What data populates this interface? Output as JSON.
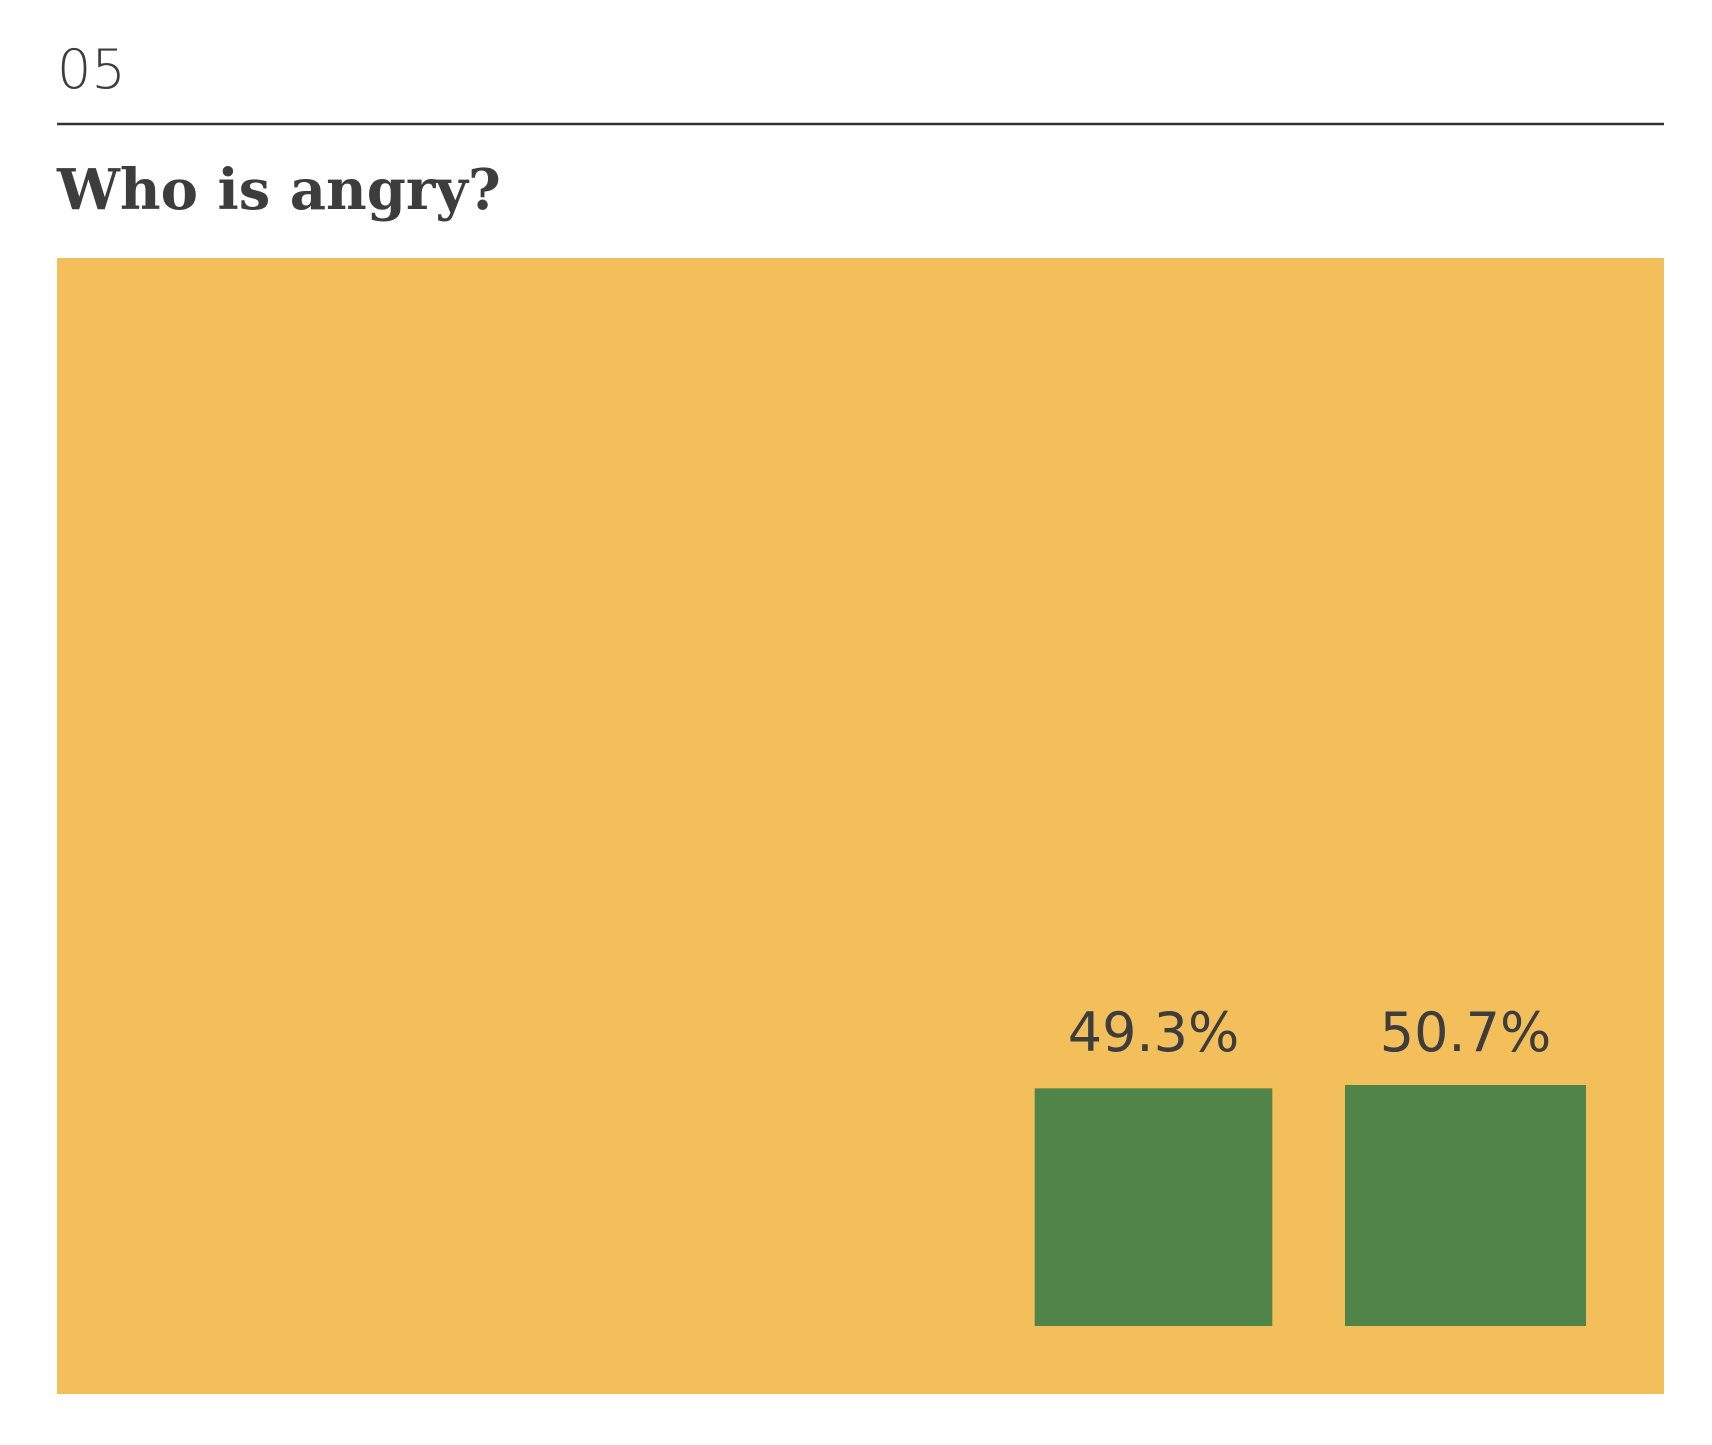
{
  "chart_data": {
    "type": "square",
    "number": "05",
    "title": "Who is angry?",
    "values": [
      49.3,
      50.7
    ],
    "value_labels": [
      "49.3%",
      "50.7%"
    ],
    "color": "#518449",
    "background": "#f3bf5a"
  }
}
